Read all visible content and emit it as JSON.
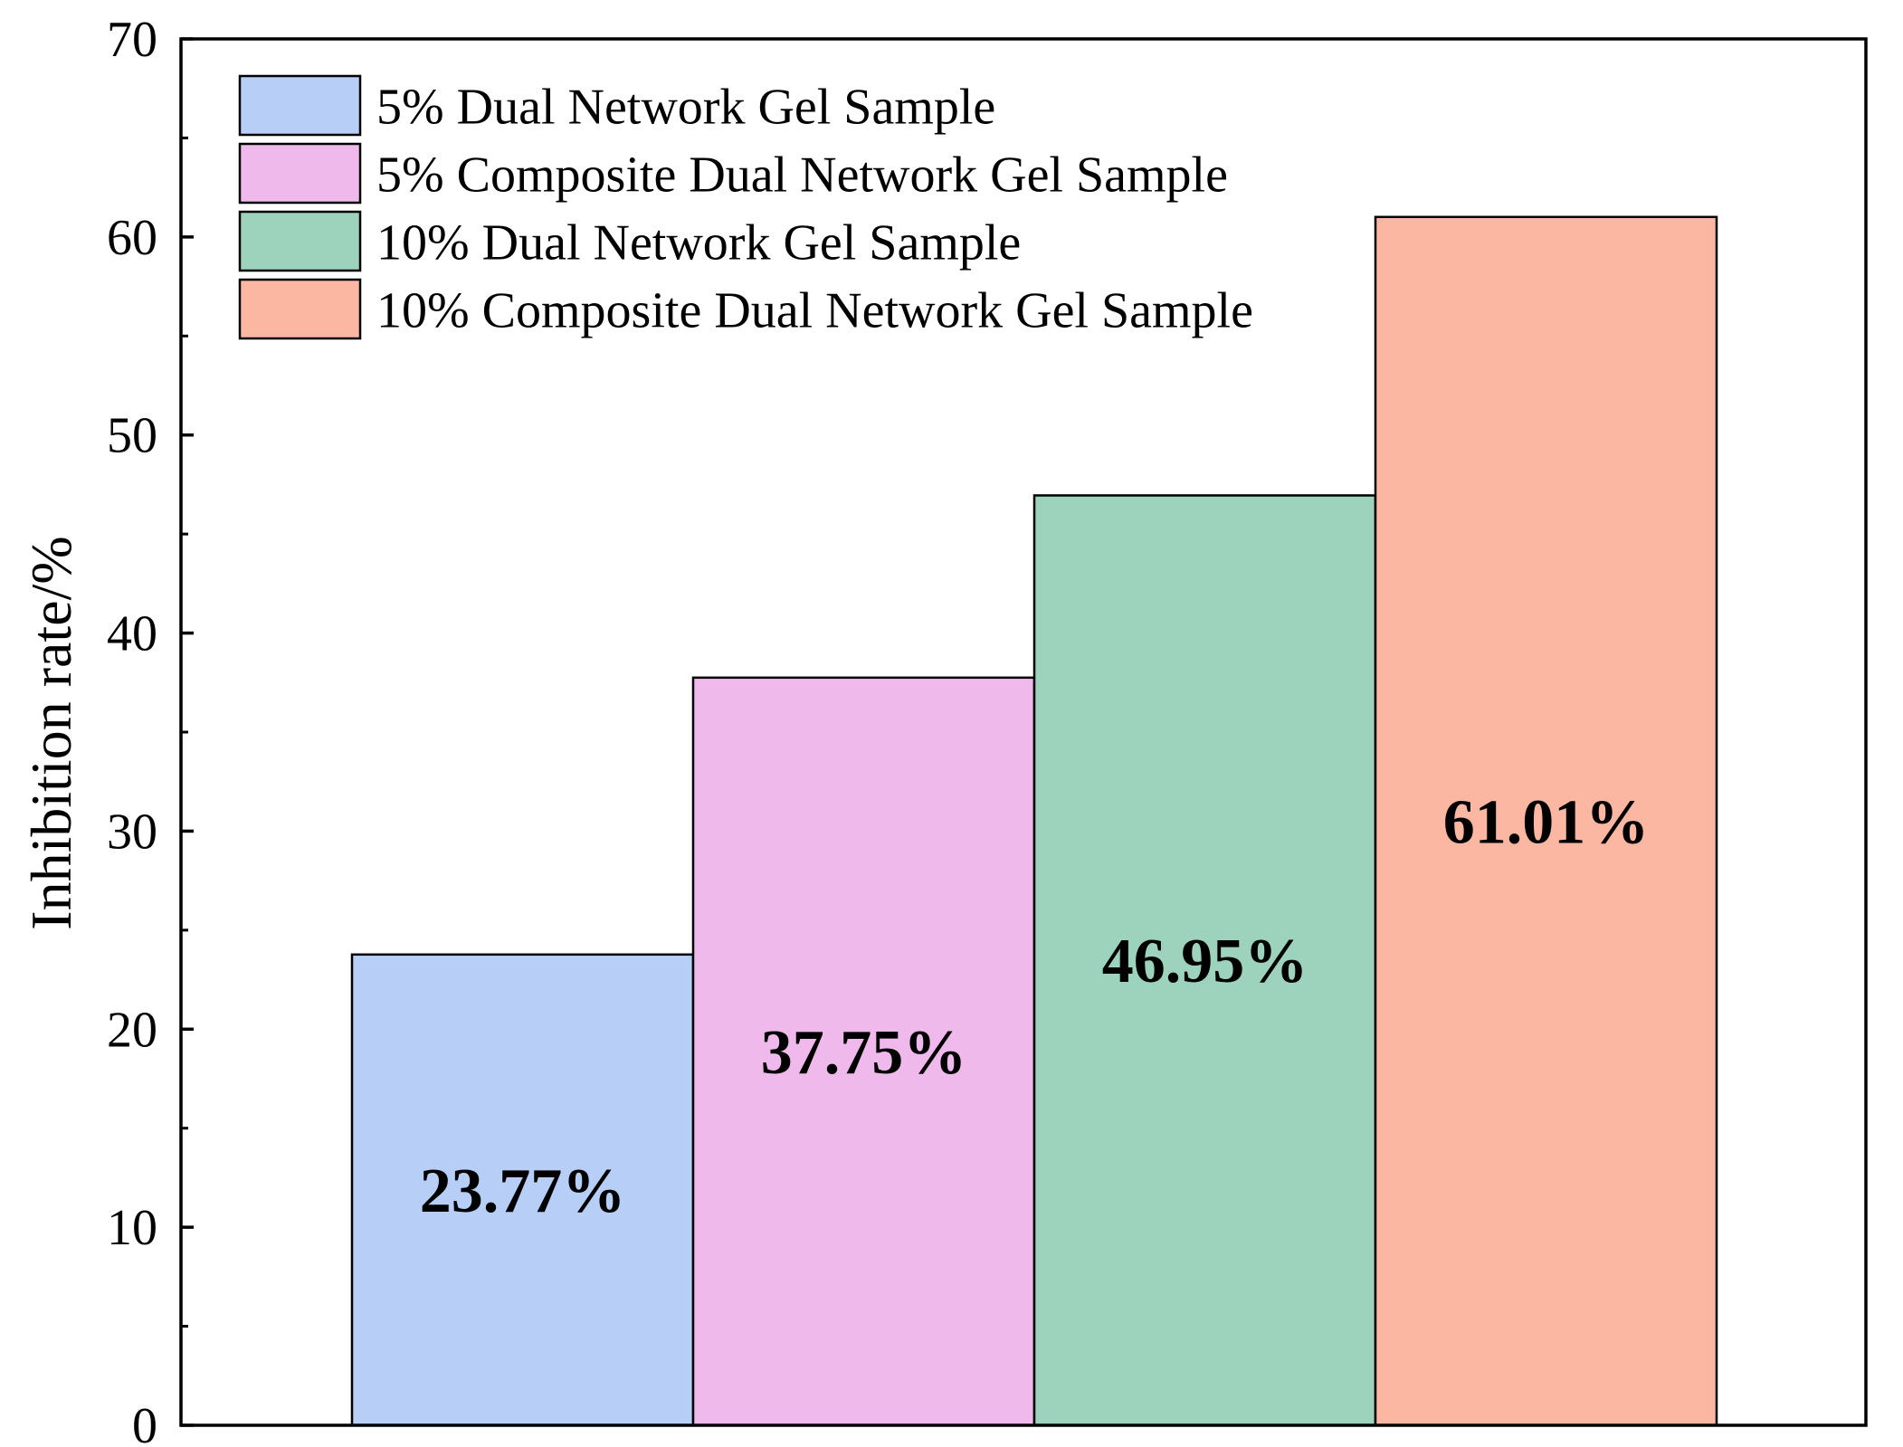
{
  "chart_data": {
    "type": "bar",
    "title": "",
    "xlabel": "",
    "ylabel": "Inhibition rate/%",
    "ylim": [
      0,
      70
    ],
    "yticks": [
      0,
      10,
      20,
      30,
      40,
      50,
      60,
      70
    ],
    "y_minor_step": 5,
    "grid": false,
    "legend_position": "top-left",
    "series": [
      {
        "name": "5% Dual Network Gel Sample",
        "value": 23.77,
        "label": "23.77%",
        "color": "#b7cff7"
      },
      {
        "name": "5% Composite Dual Network Gel Sample",
        "value": 37.75,
        "label": "37.75%",
        "color": "#f0b9ec"
      },
      {
        "name": "10% Dual Network Gel Sample",
        "value": 46.95,
        "label": "46.95%",
        "color": "#9dd3bd"
      },
      {
        "name": "10% Composite Dual Network Gel Sample",
        "value": 61.01,
        "label": "61.01%",
        "color": "#fbb7a1"
      }
    ]
  }
}
